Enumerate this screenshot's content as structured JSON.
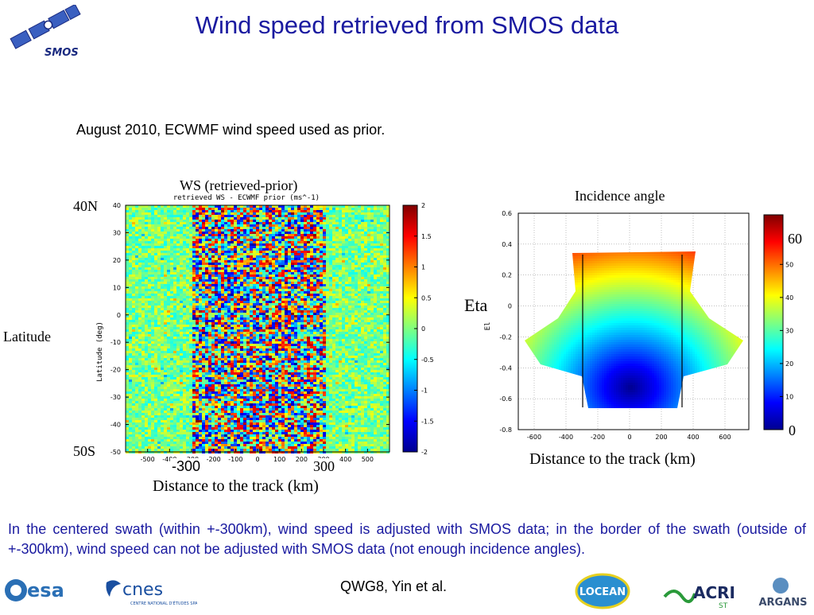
{
  "header": {
    "title": "Wind speed retrieved from SMOS data",
    "logo_text": "SMOS"
  },
  "subtitle": "August 2010, ECWMF wind speed used as prior.",
  "left_panel": {
    "overlay_title": "WS (retrieved-prior)",
    "overlay_ylabel": "Latitude",
    "overlay_top_lat": "40N",
    "overlay_bottom_lat": "50S",
    "overlay_x_neg": "-300",
    "overlay_x_pos": "300",
    "overlay_xlabel": "Distance to the track (km)"
  },
  "right_panel": {
    "overlay_title": "Incidence angle",
    "overlay_ylabel": "Eta",
    "overlay_xlabel": "Distance to the track (km)",
    "overlay_cb_top": "60",
    "overlay_cb_bottom": "0"
  },
  "chart_data": [
    {
      "type": "heatmap",
      "title": "retrieved WS - ECWMF prior (ms^-1)",
      "xlabel": "",
      "ylabel": "Latitude (deg)",
      "xlim": [
        -600,
        600
      ],
      "ylim": [
        -50,
        40
      ],
      "xticks": [
        -500,
        -400,
        -300,
        -200,
        -100,
        0,
        100,
        200,
        300,
        400,
        500
      ],
      "yticks": [
        40,
        30,
        20,
        10,
        0,
        -10,
        -20,
        -30,
        -40,
        -50
      ],
      "colorbar": {
        "min": -2,
        "max": 2,
        "ticks": [
          "2",
          "1.5",
          "1",
          "0.5",
          "0",
          "-0.5",
          "-1",
          "-1.5",
          "-2"
        ]
      },
      "colormap": "jet",
      "description_values": {
        "centered_swath_km": [
          -300,
          300
        ],
        "noisy_band_km": [
          -300,
          300
        ]
      }
    },
    {
      "type": "heatmap",
      "title": "",
      "xlabel": "",
      "ylabel": "El",
      "xlim": [
        -700,
        750
      ],
      "ylim": [
        -0.8,
        0.6
      ],
      "xticks": [
        -600,
        -400,
        -200,
        0,
        200,
        400,
        600
      ],
      "yticks": [
        0.6,
        0.4,
        0.2,
        0,
        -0.2,
        -0.4,
        -0.6,
        -0.8
      ],
      "colorbar": {
        "min": 0,
        "max": 65,
        "ticks": [
          "50",
          "40",
          "30",
          "20",
          "10"
        ]
      },
      "colormap": "jet",
      "swath_lines_km": [
        -320,
        320
      ],
      "minimum_incidence_at": [
        0,
        -0.52
      ]
    }
  ],
  "description": "In the centered swath (within +-300km), wind speed is adjusted with SMOS data; in the border of the swath (outside of +-300km), wind speed can not be adjusted with SMOS data (not enough incidence angles).",
  "credit": "QWG8, Yin et al.",
  "footer_logos": {
    "esa": "esa",
    "cnes": "cnes",
    "cnes_sub": "CENTRE NATIONAL D'ÉTUDES SPATIALES",
    "locean": "LOCEAN",
    "acri": "ACRI",
    "acri_sub": "ST",
    "argans": "ARGANS"
  },
  "colors": {
    "title": "#1a1aa0",
    "description": "#1a1aa0"
  }
}
